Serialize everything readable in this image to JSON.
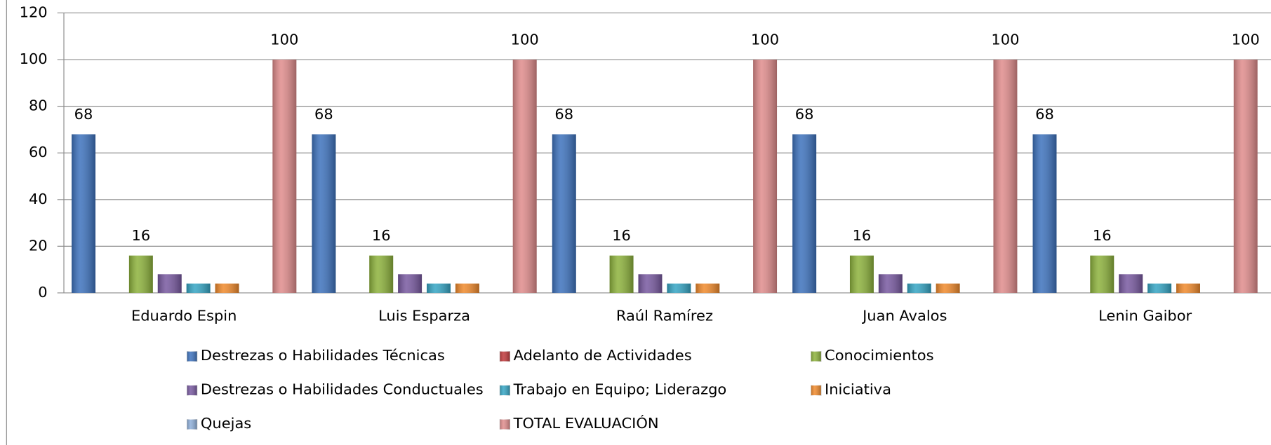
{
  "chart_data": {
    "type": "bar",
    "categories": [
      "Eduardo Espin",
      "Luis Esparza",
      "Raúl Ramírez",
      "Juan Avalos",
      "Lenin Gaibor"
    ],
    "series": [
      {
        "name": "Destrezas o Habilidades Técnicas",
        "color": "#3d72bd",
        "values": [
          68,
          68,
          68,
          68,
          68
        ],
        "data_labels": true
      },
      {
        "name": "Adelanto de Actividades",
        "color": "#c0393b",
        "values": [
          0,
          0,
          0,
          0,
          0
        ],
        "data_labels": false
      },
      {
        "name": "Conocimientos",
        "color": "#8db23c",
        "values": [
          16,
          16,
          16,
          16,
          16
        ],
        "data_labels": true
      },
      {
        "name": "Destrezas o Habilidades Conductuales",
        "color": "#7859a0",
        "values": [
          8,
          8,
          8,
          8,
          8
        ],
        "data_labels": false
      },
      {
        "name": "Trabajo en Equipo; Liderazgo",
        "color": "#35a5c4",
        "values": [
          4,
          4,
          4,
          4,
          4
        ],
        "data_labels": false
      },
      {
        "name": "Iniciativa",
        "color": "#f08a2c",
        "values": [
          4,
          4,
          4,
          4,
          4
        ],
        "data_labels": false
      },
      {
        "name": "Quejas",
        "color": "#8daed8",
        "values": [
          0,
          0,
          0,
          0,
          0
        ],
        "data_labels": false
      },
      {
        "name": "TOTAL EVALUACIÓN",
        "color": "#e08c8c",
        "values": [
          100,
          100,
          100,
          100,
          100
        ],
        "data_labels": true
      }
    ],
    "ylim": [
      0,
      120
    ],
    "yticks": [
      0,
      20,
      40,
      60,
      80,
      100,
      120
    ],
    "grid": true,
    "legend": "bottom"
  }
}
